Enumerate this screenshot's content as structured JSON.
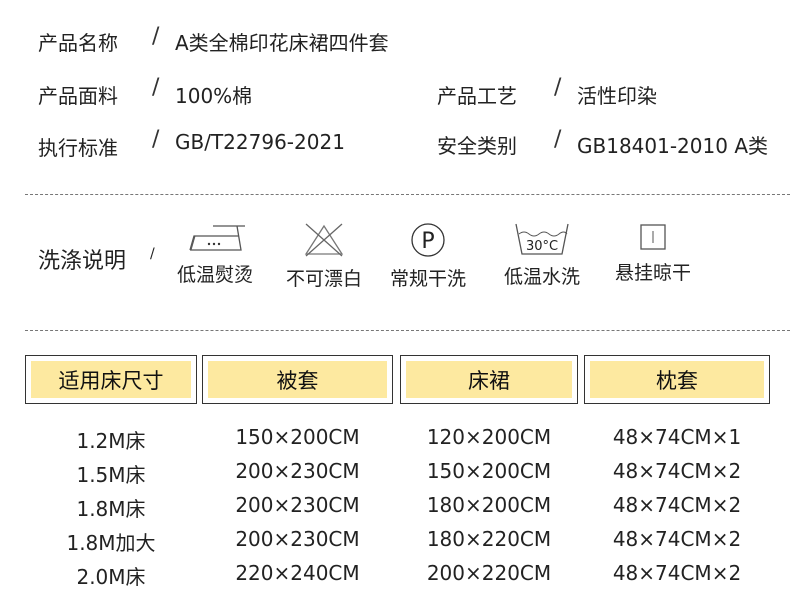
{
  "info": [
    {
      "label": "产品名称",
      "value": "A类全棉印花床裙四件套"
    },
    {
      "label": "产品面料",
      "value": "100%棉"
    },
    {
      "label": "产品工艺",
      "value": "活性印染"
    },
    {
      "label": "执行标准",
      "value": "GB/T22796-2021"
    },
    {
      "label": "安全类别",
      "value": "GB18401-2010 A类"
    }
  ],
  "slash": "/",
  "care": {
    "title": "洗涤说明",
    "items": [
      {
        "icon": "iron-low-icon",
        "label": "低温熨烫"
      },
      {
        "icon": "no-bleach-icon",
        "label": "不可漂白"
      },
      {
        "icon": "dry-clean-p-icon",
        "label": "常规干洗",
        "glyph": "P"
      },
      {
        "icon": "wash-30-icon",
        "label": "低温水洗",
        "glyph": "30°C"
      },
      {
        "icon": "hang-dry-icon",
        "label": "悬挂晾干"
      }
    ]
  },
  "table": {
    "headers": [
      "适用床尺寸",
      "被套",
      "床裙",
      "枕套"
    ],
    "rows": [
      [
        "1.2M床",
        "150×200CM",
        "120×200CM",
        "48×74CM×1"
      ],
      [
        "1.5M床",
        "200×230CM",
        "150×200CM",
        "48×74CM×2"
      ],
      [
        "1.8M床",
        "200×230CM",
        "180×200CM",
        "48×74CM×2"
      ],
      [
        "1.8M加大",
        "200×230CM",
        "180×220CM",
        "48×74CM×2"
      ],
      [
        "2.0M床",
        "220×240CM",
        "200×220CM",
        "48×74CM×2"
      ]
    ]
  },
  "colors": {
    "header_fill": "#fde9a0",
    "border": "#333333"
  }
}
